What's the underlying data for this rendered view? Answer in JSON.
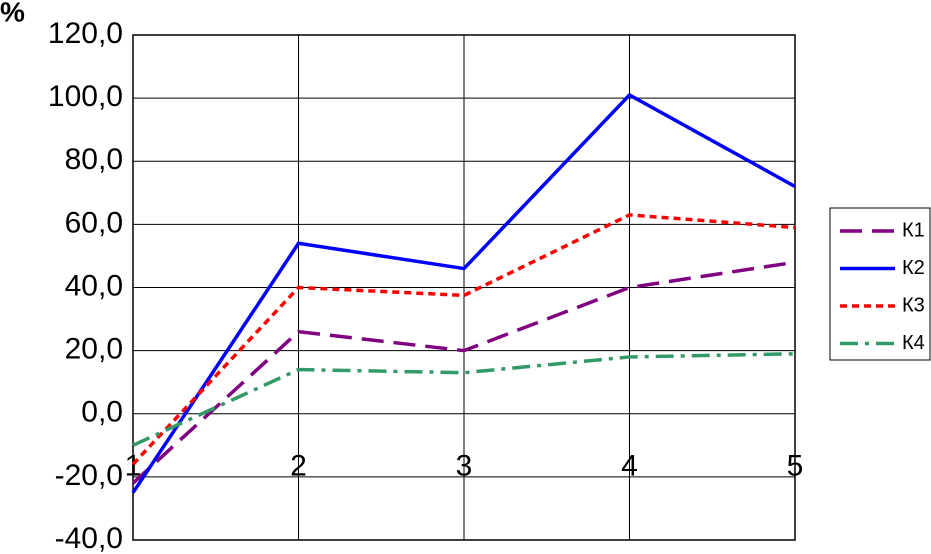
{
  "chart_data": {
    "type": "line",
    "title": "%",
    "x": [
      1,
      2,
      3,
      4,
      5
    ],
    "xlim": [
      1,
      5
    ],
    "xticks": [
      1,
      2,
      3,
      4,
      5
    ],
    "ylim": [
      -40,
      120
    ],
    "yticks": [
      {
        "value": -40,
        "label": "-40,0"
      },
      {
        "value": -20,
        "label": "-20,0"
      },
      {
        "value": 0,
        "label": "0,0"
      },
      {
        "value": 20,
        "label": "20,0"
      },
      {
        "value": 40,
        "label": "40,0"
      },
      {
        "value": 60,
        "label": "60,0"
      },
      {
        "value": 80,
        "label": "80,0"
      },
      {
        "value": 100,
        "label": "100,0"
      },
      {
        "value": 120,
        "label": "120,0"
      }
    ],
    "grid": true,
    "legend": "right",
    "series": [
      {
        "name": "К1",
        "color": "#800080",
        "dash": "dashed",
        "values": [
          -22,
          26,
          20,
          40,
          48
        ]
      },
      {
        "name": "К2",
        "color": "#0000ff",
        "dash": "solid",
        "values": [
          -25,
          54,
          46,
          101,
          72
        ]
      },
      {
        "name": "К3",
        "color": "#ff0000",
        "dash": "dotted",
        "values": [
          -16,
          40,
          37.5,
          63,
          59
        ]
      },
      {
        "name": "К4",
        "color": "#339966",
        "dash": "dashdot",
        "values": [
          -10,
          14,
          13,
          18,
          19
        ]
      }
    ]
  }
}
